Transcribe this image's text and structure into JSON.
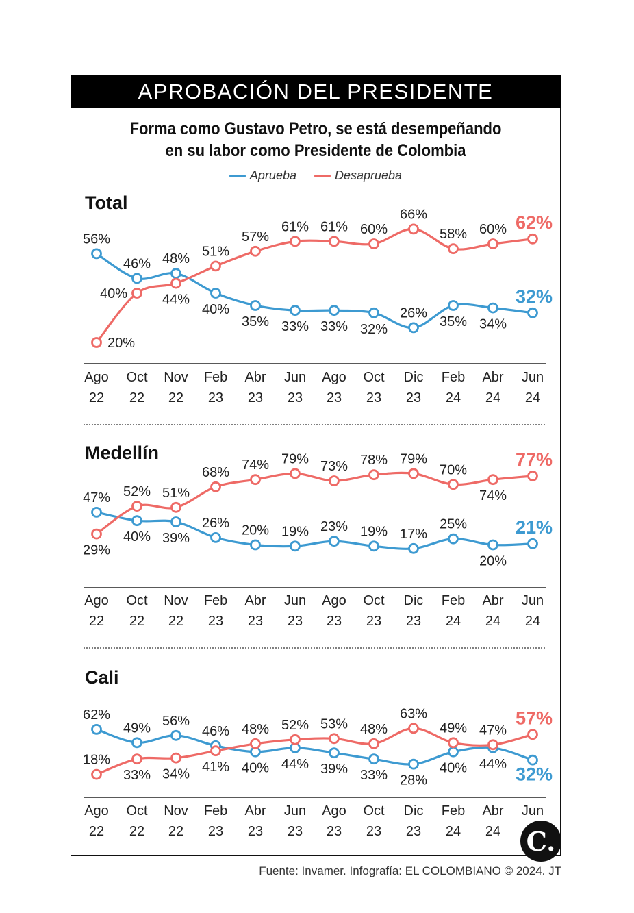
{
  "header": {
    "title": "APROBACIÓN DEL PRESIDENTE",
    "subtitle_line1": "Forma como Gustavo Petro, se está desempeñando",
    "subtitle_line2": "en su labor como Presidente de Colombia"
  },
  "legend": {
    "aprueba": "Aprueba",
    "desaprueba": "Desaprueba"
  },
  "colors": {
    "aprueba": "#3d9ad1",
    "desaprueba": "#ee6a66"
  },
  "footer": {
    "source": "Fuente: Invamer. Infografía: EL COLOMBIANO © 2024. JT",
    "logo": "C."
  },
  "chart_data": [
    {
      "type": "line",
      "title": "Total",
      "categories": [
        [
          "Ago",
          "22"
        ],
        [
          "Oct",
          "22"
        ],
        [
          "Nov",
          "22"
        ],
        [
          "Feb",
          "23"
        ],
        [
          "Abr",
          "23"
        ],
        [
          "Jun",
          "23"
        ],
        [
          "Ago",
          "23"
        ],
        [
          "Oct",
          "23"
        ],
        [
          "Dic",
          "23"
        ],
        [
          "Feb",
          "24"
        ],
        [
          "Abr",
          "24"
        ],
        [
          "Jun",
          "24"
        ]
      ],
      "series": [
        {
          "name": "Aprueba",
          "values": [
            56,
            46,
            48,
            40,
            35,
            33,
            33,
            32,
            26,
            35,
            34,
            32
          ]
        },
        {
          "name": "Desaprueba",
          "values": [
            20,
            40,
            44,
            51,
            57,
            61,
            61,
            60,
            66,
            58,
            60,
            62
          ]
        }
      ],
      "ylim": [
        15,
        70
      ],
      "label_pos": {
        "Aprueba": [
          "above",
          "above",
          "above",
          "below",
          "below",
          "below",
          "below",
          "below",
          "above",
          "below",
          "below",
          "above"
        ],
        "Desaprueba": [
          "right",
          "left",
          "below",
          "above",
          "above",
          "above",
          "above",
          "above",
          "above",
          "above",
          "above",
          "above"
        ]
      }
    },
    {
      "type": "line",
      "title": "Medellín",
      "categories": [
        [
          "Ago",
          "22"
        ],
        [
          "Oct",
          "22"
        ],
        [
          "Nov",
          "22"
        ],
        [
          "Feb",
          "23"
        ],
        [
          "Abr",
          "23"
        ],
        [
          "Jun",
          "23"
        ],
        [
          "Ago",
          "23"
        ],
        [
          "Oct",
          "23"
        ],
        [
          "Dic",
          "23"
        ],
        [
          "Feb",
          "24"
        ],
        [
          "Abr",
          "24"
        ],
        [
          "Jun",
          "24"
        ]
      ],
      "series": [
        {
          "name": "Aprueba",
          "values": [
            47,
            40,
            39,
            26,
            20,
            19,
            23,
            19,
            17,
            25,
            20,
            21
          ]
        },
        {
          "name": "Desaprueba",
          "values": [
            29,
            52,
            51,
            68,
            74,
            79,
            73,
            78,
            79,
            70,
            74,
            77
          ]
        }
      ],
      "ylim": [
        5,
        90
      ],
      "label_pos": {
        "Aprueba": [
          "above",
          "below",
          "below",
          "above",
          "above",
          "above",
          "above",
          "above",
          "above",
          "above",
          "below",
          "above"
        ],
        "Desaprueba": [
          "below",
          "above",
          "above",
          "above",
          "above",
          "above",
          "above",
          "above",
          "above",
          "above",
          "below",
          "above"
        ]
      }
    },
    {
      "type": "line",
      "title": "Cali",
      "categories": [
        [
          "Ago",
          "22"
        ],
        [
          "Oct",
          "22"
        ],
        [
          "Nov",
          "22"
        ],
        [
          "Feb",
          "23"
        ],
        [
          "Abr",
          "23"
        ],
        [
          "Jun",
          "23"
        ],
        [
          "Ago",
          "23"
        ],
        [
          "Oct",
          "23"
        ],
        [
          "Dic",
          "23"
        ],
        [
          "Feb",
          "24"
        ],
        [
          "Abr",
          "24"
        ],
        [
          "Jun",
          ""
        ]
      ],
      "series": [
        {
          "name": "Aprueba",
          "values": [
            62,
            49,
            56,
            46,
            40,
            44,
            39,
            33,
            28,
            40,
            44,
            32
          ]
        },
        {
          "name": "Desaprueba",
          "values": [
            18,
            33,
            34,
            41,
            48,
            52,
            53,
            48,
            63,
            49,
            47,
            57
          ]
        }
      ],
      "ylim": [
        5,
        80
      ],
      "label_pos": {
        "Aprueba": [
          "above",
          "above",
          "above",
          "above",
          "below",
          "below",
          "below",
          "below",
          "below",
          "below",
          "below",
          "below"
        ],
        "Desaprueba": [
          "above",
          "below",
          "below",
          "below",
          "above",
          "above",
          "above",
          "above",
          "above",
          "above",
          "above",
          "above"
        ]
      }
    }
  ]
}
